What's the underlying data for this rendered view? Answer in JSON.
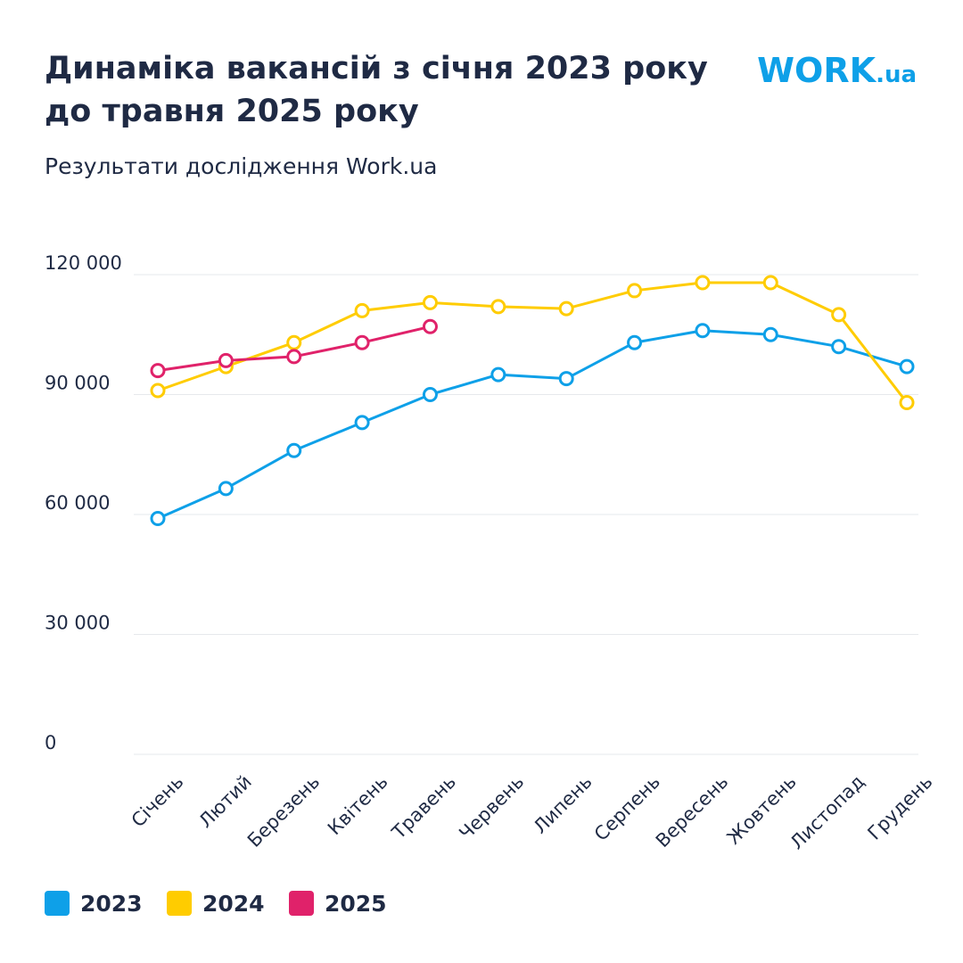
{
  "chart_data": {
    "type": "line",
    "title": [
      "Динаміка вакансій з січня 2023 року",
      "до травня 2025 року"
    ],
    "subtitle": "Результати дослідження Work.ua",
    "logo": {
      "main": "WORK",
      "suffix": ".ua"
    },
    "categories": [
      "Січень",
      "Лютий",
      "Березень",
      "Квітень",
      "Травень",
      "Червень",
      "Липень",
      "Серпень",
      "Вересень",
      "Жовтень",
      "Листопад",
      "Грудень"
    ],
    "series": [
      {
        "name": "2023",
        "color": "#0ea0e8",
        "values": [
          59000,
          66500,
          76000,
          83000,
          90000,
          95000,
          94000,
          103000,
          106000,
          105000,
          102000,
          97000
        ]
      },
      {
        "name": "2024",
        "color": "#ffcc00",
        "values": [
          91000,
          97000,
          103000,
          111000,
          113000,
          112000,
          111500,
          116000,
          118000,
          118000,
          110000,
          88000
        ]
      },
      {
        "name": "2025",
        "color": "#e0226a",
        "values": [
          96000,
          98500,
          99500,
          103000,
          107000,
          null,
          null,
          null,
          null,
          null,
          null,
          null
        ]
      }
    ],
    "ylim": [
      0,
      120000
    ],
    "yticks": [
      0,
      {
        "value": 30000,
        "label": "30 000"
      },
      {
        "value": 60000,
        "label": "60 000"
      },
      {
        "value": 90000,
        "label": "90 000"
      },
      {
        "value": 120000,
        "label": "120 000"
      }
    ],
    "grid": true,
    "legend": "bottom-left"
  }
}
